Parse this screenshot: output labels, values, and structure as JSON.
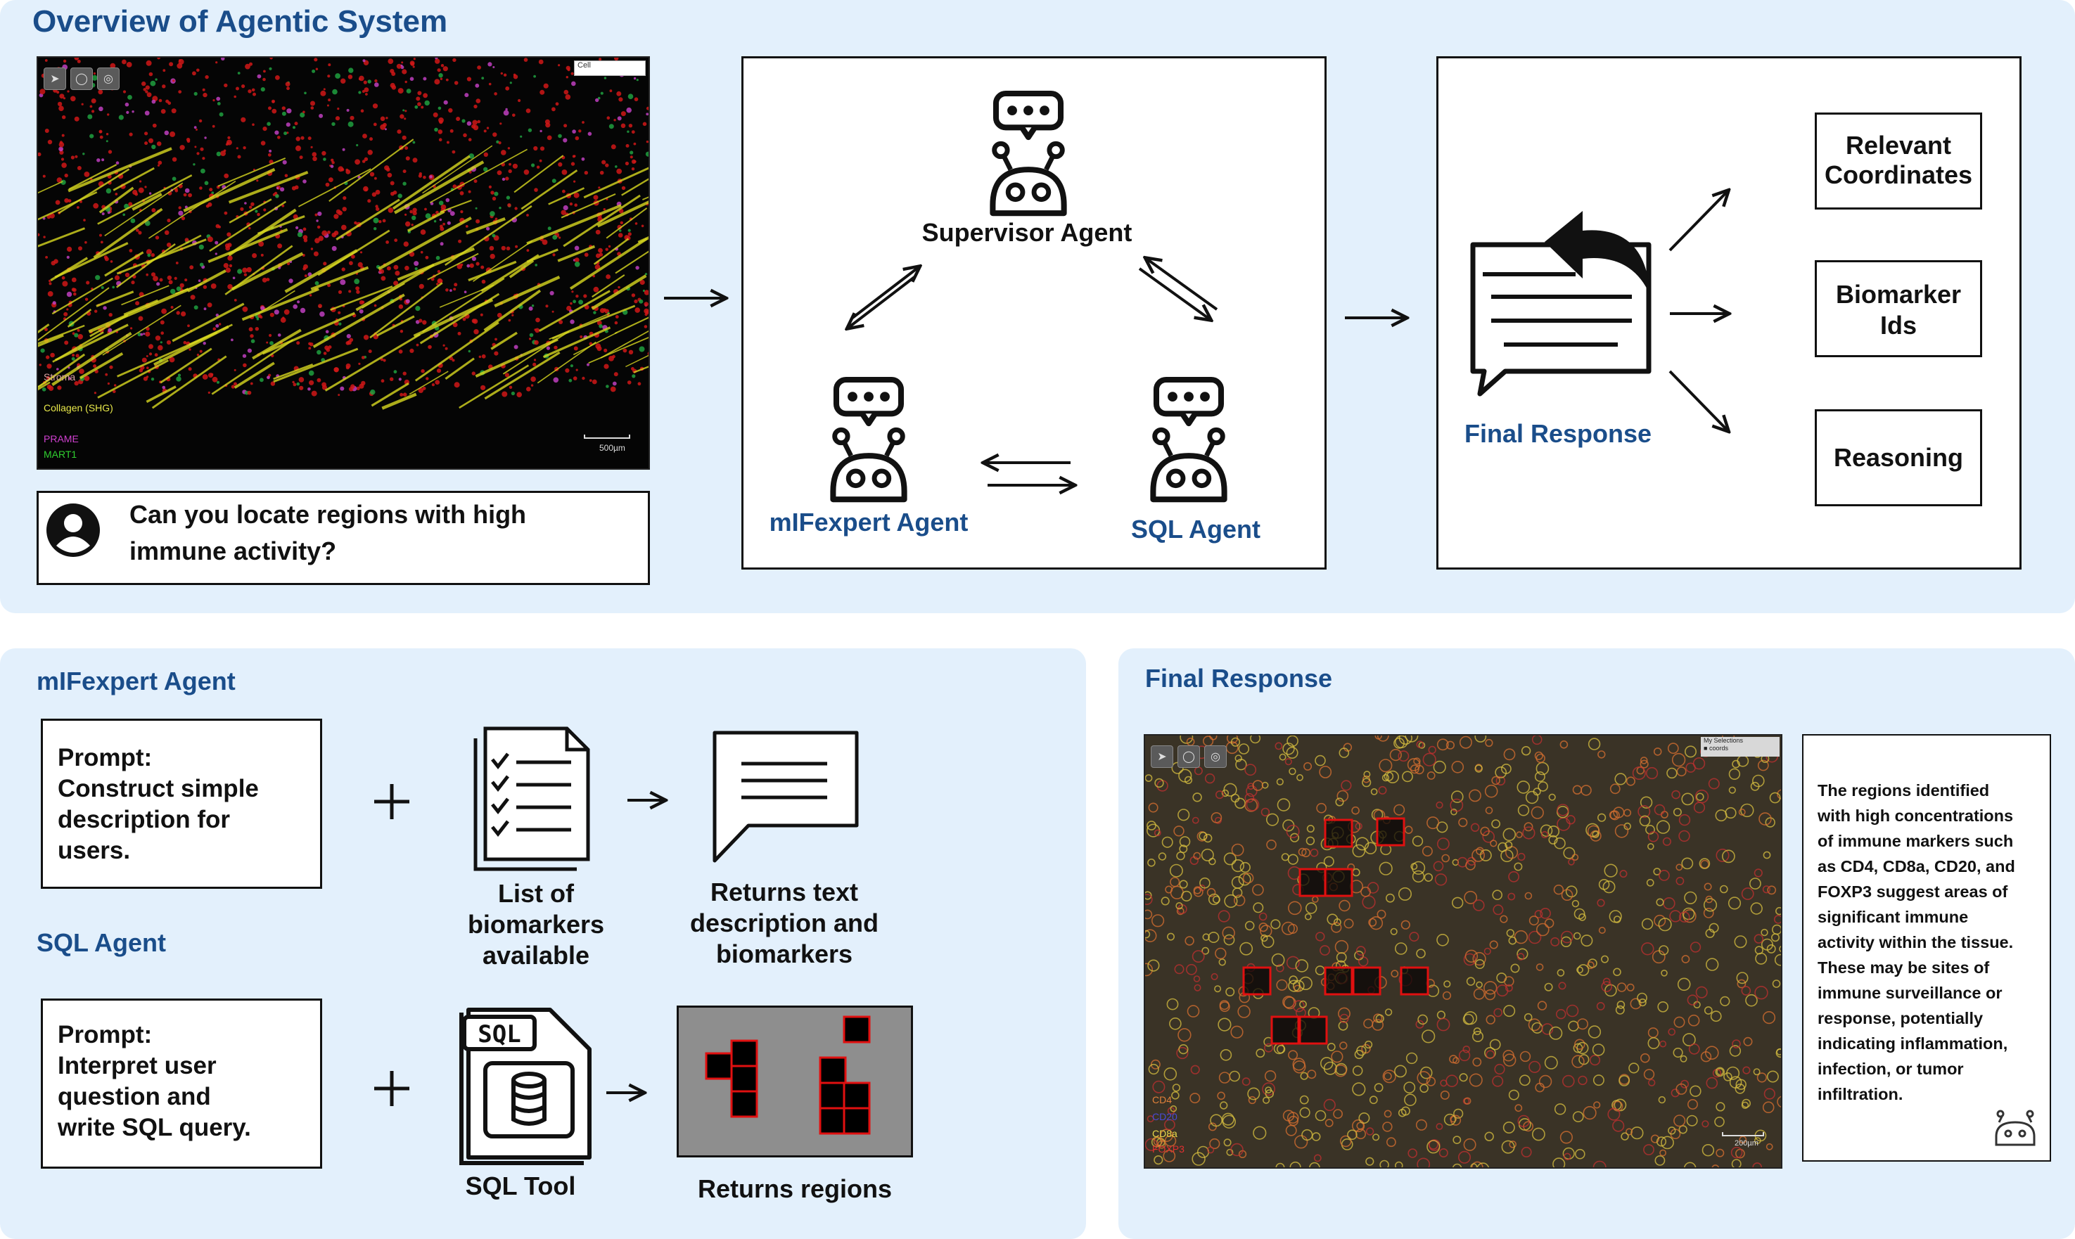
{
  "overview": {
    "title": "Overview of Agentic System",
    "image": {
      "legend": [
        "Stroma",
        "Collagen (SHG)",
        "PRAME",
        "MART1"
      ],
      "legend_colors": [
        "#d6a0a0",
        "#e8e84a",
        "#d040d0",
        "#30d030"
      ],
      "scale_label": "500µm",
      "search_label": "Cell"
    },
    "query": "Can you locate regions with high immune activity?",
    "query_line1": "Can you locate regions with high",
    "query_line2": "immune activity?",
    "supervisor": "Supervisor Agent",
    "mlfexpert": "mIFexpert Agent",
    "sql": "SQL Agent",
    "final_response": "Final Response",
    "outputs": [
      {
        "line1": "Relevant",
        "line2": "Coordinates"
      },
      {
        "line1": "Biomarker",
        "line2": "Ids"
      },
      {
        "line1": "Reasoning",
        "line2": ""
      }
    ]
  },
  "mlf_panel": {
    "title": "mIFexpert Agent",
    "prompt_lines": [
      "Prompt:",
      "Construct simple",
      "description for",
      "users."
    ],
    "list_label": [
      "List of",
      "biomarkers",
      "available"
    ],
    "returns_label": [
      "Returns text",
      "description and",
      "biomarkers"
    ]
  },
  "sql_panel": {
    "title": "SQL Agent",
    "prompt_lines": [
      "Prompt:",
      "Interpret user",
      "question and",
      "write SQL query."
    ],
    "tool_label": "SQL Tool",
    "sql_icon_text": "SQL",
    "returns_label": "Returns regions"
  },
  "final_panel": {
    "title": "Final Response",
    "legend": [
      "CD4",
      "CD20",
      "CD8a",
      "FOXP3"
    ],
    "legend_colors": [
      "#e0803a",
      "#4a4ad8",
      "#e8d84a",
      "#e03030"
    ],
    "scale_label": "200µm",
    "selection_label": "My Selections",
    "selection_item": "coords",
    "response_lines": [
      "The regions identified",
      "with high concentrations",
      "of immune markers such",
      "as CD4, CD8a, CD20, and",
      "FOXP3 suggest areas of",
      "significant immune",
      "activity within the tissue.",
      "These may be sites of",
      "immune surveillance or",
      "response, potentially",
      "indicating inflammation,",
      "infection, or tumor",
      "infiltration."
    ]
  }
}
